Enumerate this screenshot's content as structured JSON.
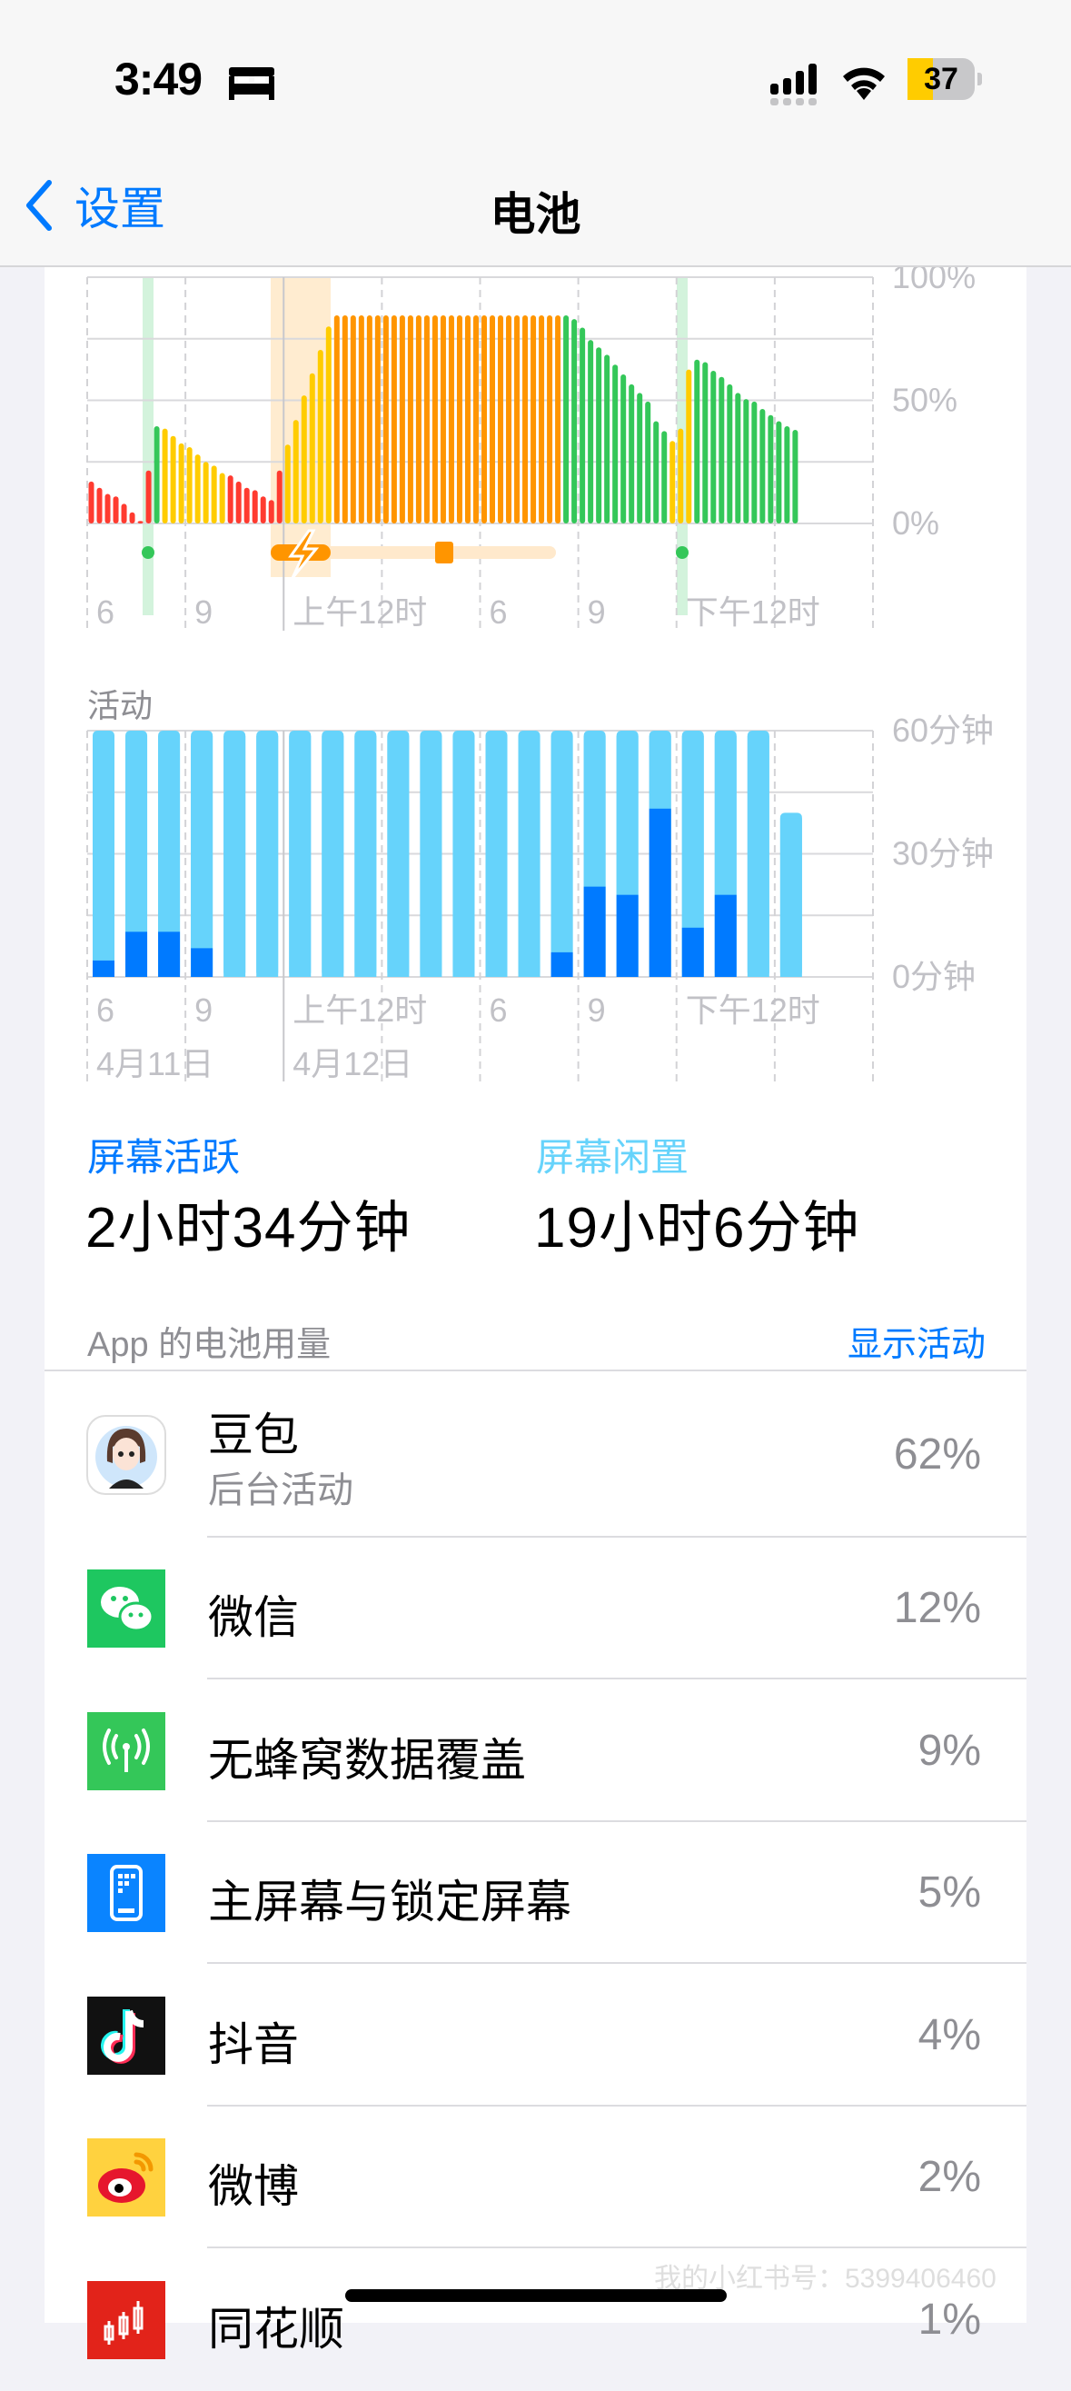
{
  "status_bar": {
    "time": "3:49",
    "focus_icon": "bed-icon",
    "signal_icon": "cellular-signal-icon",
    "wifi_icon": "wifi-icon",
    "battery_level": "37",
    "battery_color": "#ffcc00"
  },
  "nav": {
    "back_label": "设置",
    "title": "电池",
    "accent": "#007aff"
  },
  "chart_data": [
    {
      "type": "bar",
      "name_printed": "",
      "ylim": [
        0,
        100
      ],
      "y_ticks": [
        "100%",
        "50%",
        "0%"
      ],
      "grid": true,
      "x_ticks": [
        "6",
        "9",
        "上午12时",
        "6",
        "9",
        "下午12时"
      ],
      "interval_minutes": 15,
      "values": [
        17,
        14.5,
        12,
        11,
        8,
        4.5,
        1,
        21.5,
        39.5,
        38.5,
        35.5,
        32.5,
        31,
        28,
        25,
        23.5,
        20.5,
        19.5,
        17,
        14.5,
        13.5,
        11,
        9.5,
        21.5,
        32,
        42,
        52,
        61,
        70.5,
        80,
        84.5,
        84.5,
        84.5,
        84.5,
        84.5,
        84.5,
        84.5,
        84.5,
        84.5,
        84.5,
        84.5,
        84.5,
        84.5,
        84.5,
        84.5,
        84.5,
        84.5,
        84.5,
        84.5,
        84.5,
        84.5,
        84.5,
        84.5,
        84.5,
        84.5,
        84.5,
        84.5,
        84.5,
        84.5,
        83,
        79.5,
        74.5,
        71.5,
        68.5,
        64.5,
        60.5,
        56.5,
        53,
        49.5,
        41.5,
        37.5,
        33.5,
        38.5,
        62.5,
        66.5,
        65.5,
        62,
        59.5,
        56.5,
        53,
        50.5,
        49.5,
        46.5,
        44,
        41.5,
        39.5,
        38
      ],
      "levels": "rrrrrrrrgyyyyyyyyrrrrrrryyyyyyoooooooooooooooooooooooooooogggggggggggggyyygggggggggggggy",
      "level_colors": {
        "r": "#ff3b30",
        "y": "#ffcc00",
        "o": "#ff9500",
        "g": "#34c759"
      },
      "charging_icon": "lightning-icon"
    },
    {
      "type": "bar",
      "title": "活动",
      "ylim": [
        0,
        60
      ],
      "y_ticks": [
        "60分钟",
        "30分钟",
        "0分钟"
      ],
      "grid": true,
      "x_ticks": [
        "6",
        "9",
        "上午12时",
        "6",
        "9",
        "下午12时"
      ],
      "date_labels": [
        "4月11日",
        "4月12日"
      ],
      "interval_minutes": 60,
      "series": [
        {
          "name": "屏幕活跃",
          "color": "#007aff",
          "values": [
            4,
            11,
            11,
            7,
            0,
            0,
            0,
            0,
            0,
            0,
            0,
            0,
            0,
            0,
            6,
            22,
            20,
            41,
            12,
            20,
            0,
            0
          ]
        },
        {
          "name": "屏幕闲置",
          "color": "#66d3fb",
          "values": [
            56,
            49,
            49,
            53,
            60,
            60,
            60,
            60,
            60,
            60,
            60,
            60,
            60,
            60,
            54,
            38,
            40,
            19,
            48,
            40,
            60,
            40
          ]
        }
      ]
    }
  ],
  "summary": {
    "active_label": "屏幕活跃",
    "active_value": "2小时34分钟",
    "idle_label": "屏幕闲置",
    "idle_value": "19小时6分钟"
  },
  "usage": {
    "header": "App 的电池用量",
    "show_activity": "显示活动",
    "apps": [
      {
        "name": "豆包",
        "subtitle": "后台活动",
        "percent": "62%",
        "icon": "doubao-avatar-icon"
      },
      {
        "name": "微信",
        "percent": "12%",
        "icon": "wechat-icon"
      },
      {
        "name": "无蜂窝数据覆盖",
        "percent": "9%",
        "icon": "cellular-antenna-icon"
      },
      {
        "name": "主屏幕与锁定屏幕",
        "percent": "5%",
        "icon": "home-lock-screen-icon"
      },
      {
        "name": "抖音",
        "percent": "4%",
        "icon": "douyin-icon"
      },
      {
        "name": "微博",
        "percent": "2%",
        "icon": "weibo-icon"
      },
      {
        "name": "同花顺",
        "percent": "1%",
        "icon": "tonghuashun-icon"
      }
    ]
  },
  "watermark": {
    "text": "我的小红书号：5399406460",
    "logo": "小红书"
  }
}
